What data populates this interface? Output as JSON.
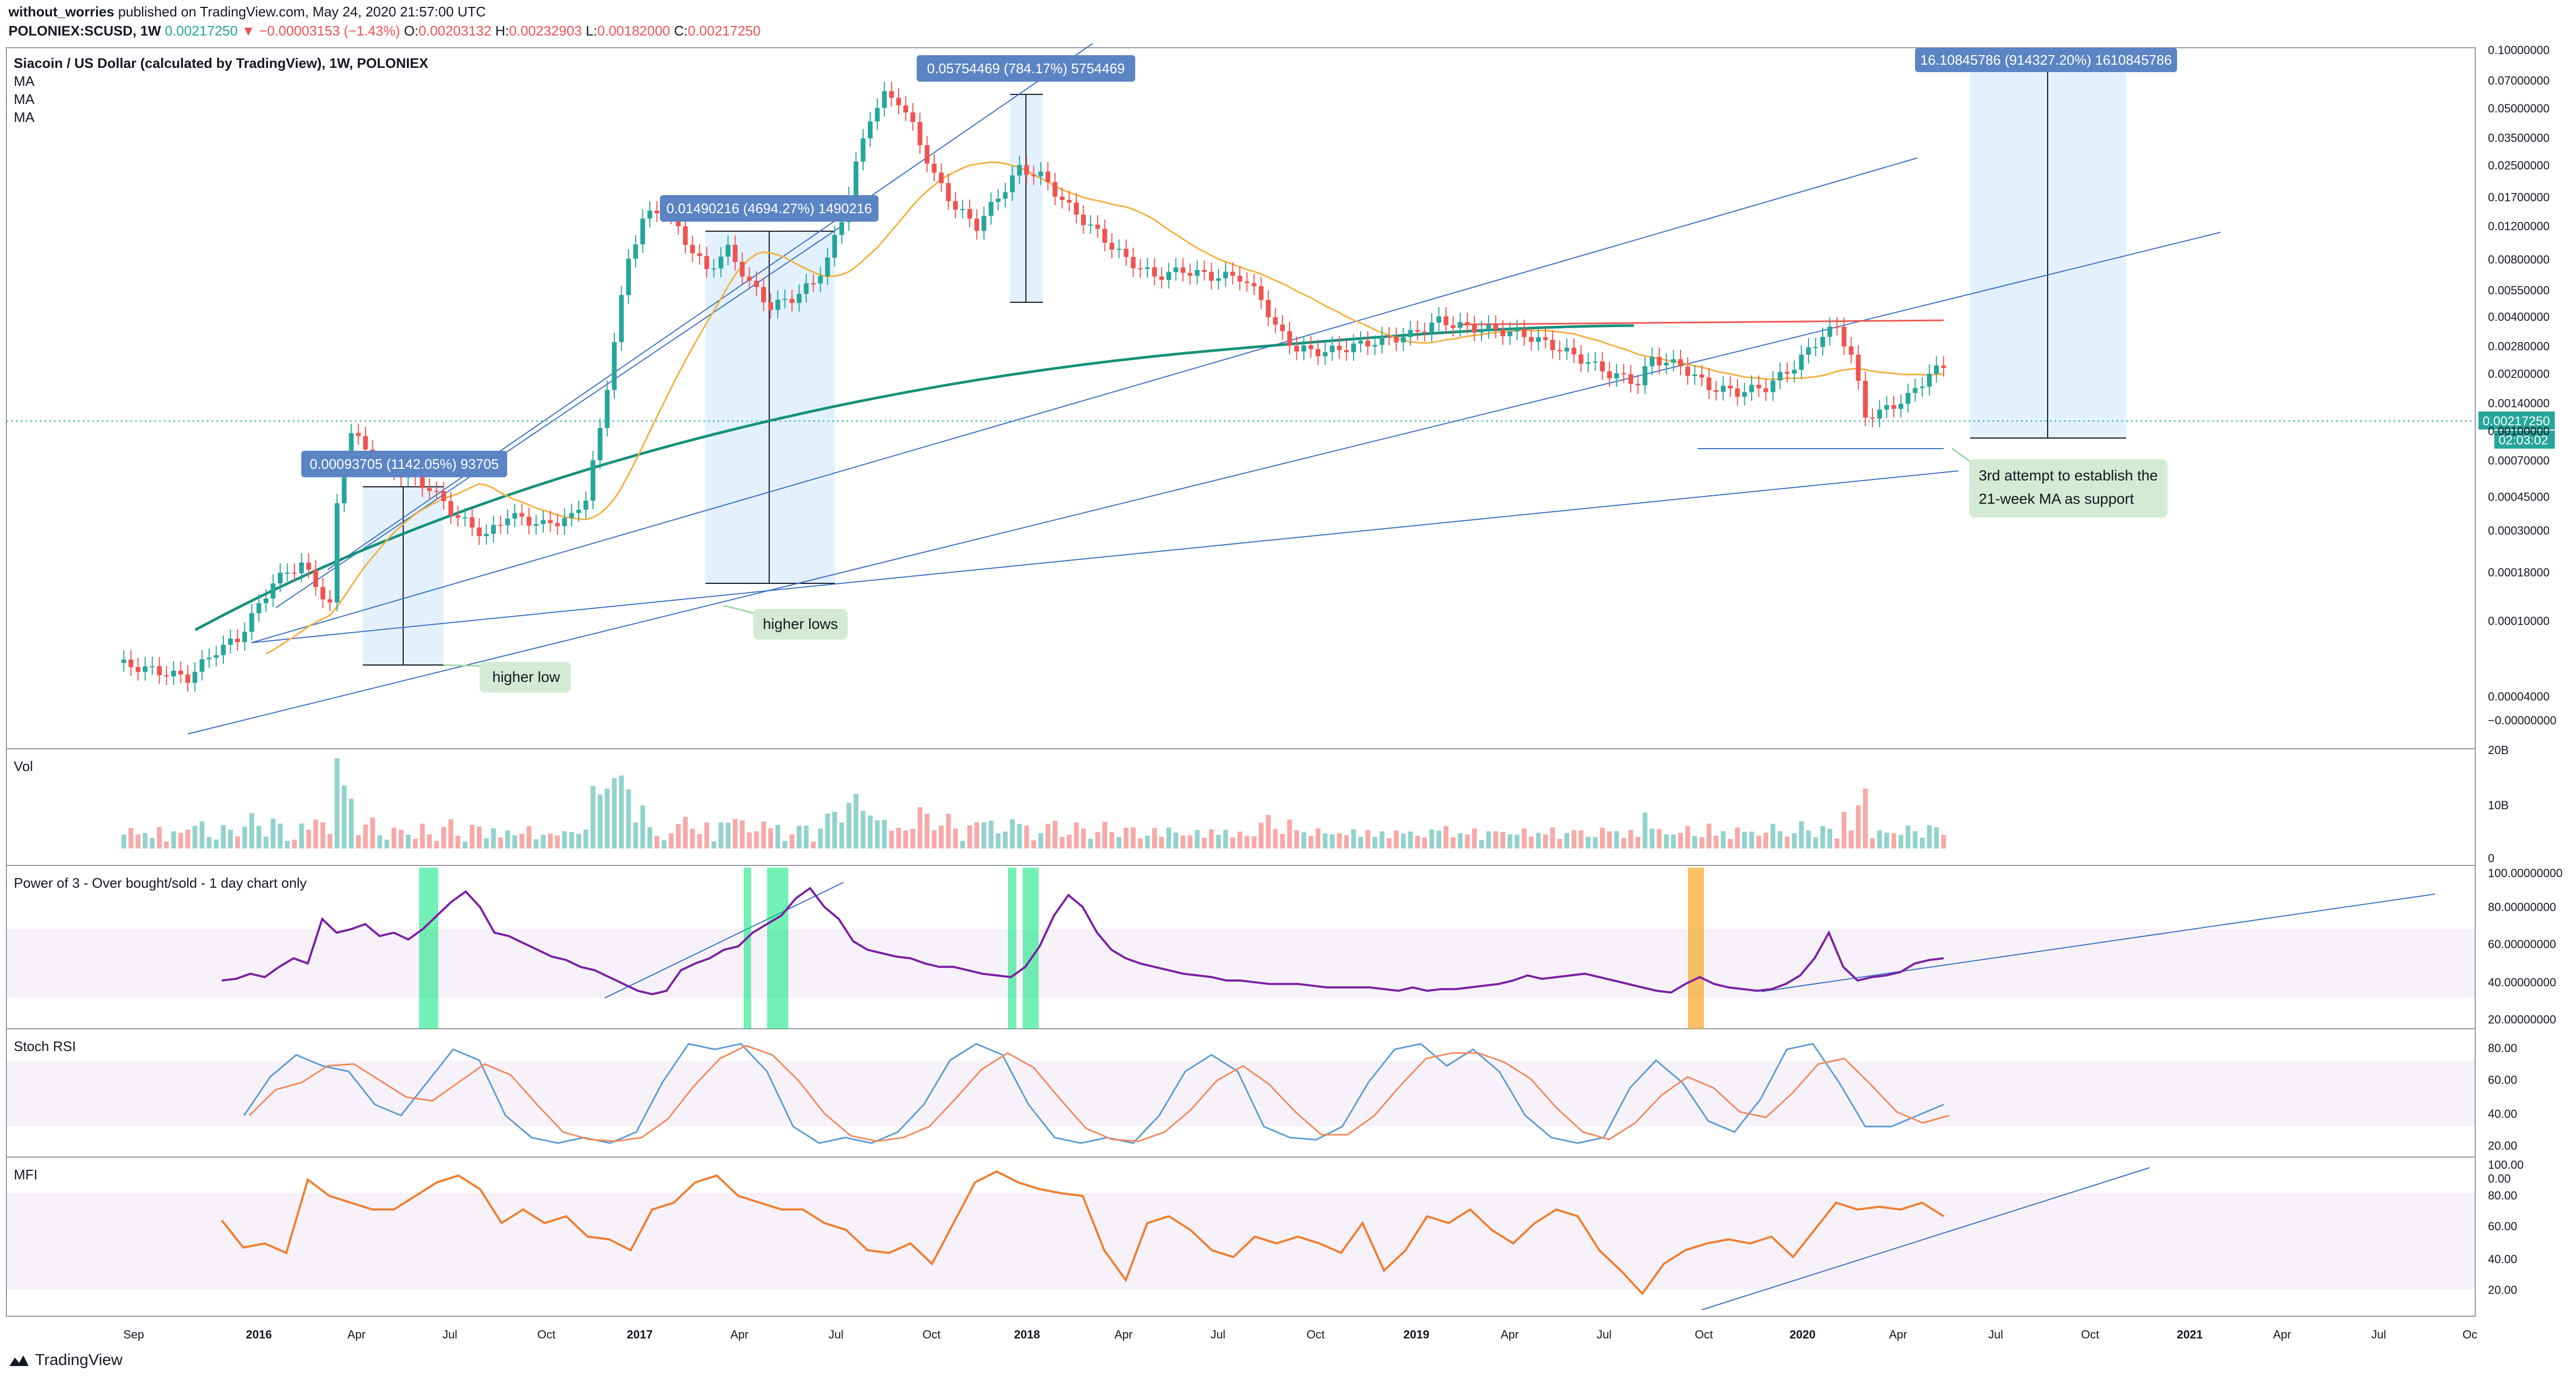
{
  "header": {
    "author": "without_worries",
    "published_text": "published on TradingView.com, May 24, 2020 21:57:00 UTC",
    "symbol": "POLONIEX:SCUSD, 1W",
    "last": "0.00217250",
    "change": "▼ −0.00003153 (−1.43%)",
    "o_label": "O:",
    "o_value": "0.00203132",
    "h_label": "H:",
    "h_value": "0.00232903",
    "l_label": "L:",
    "l_value": "0.00182000",
    "c_label": "C:",
    "c_value": "0.00217250"
  },
  "brand": "TradingView",
  "colors": {
    "up": "#26a69a",
    "down": "#ef5350",
    "ma21": "#f5b041",
    "ma_long": "#15907a",
    "trend": "#3a6fc4",
    "osc": "#7b1fa2",
    "stoch_k": "#5b9bd5",
    "stoch_d": "#f08a5d",
    "mfi": "#f07e2f"
  },
  "chart_data": {
    "type": "candlestick",
    "title": "Siacoin / US Dollar (calculated by TradingView), 1W, POLONIEX",
    "legend": [
      "MA",
      "MA",
      "MA"
    ],
    "scale": "log",
    "x_ticks": [
      "Sep",
      "2016",
      "Apr",
      "Jul",
      "Oct",
      "2017",
      "Apr",
      "Jul",
      "Oct",
      "2018",
      "Apr",
      "Jul",
      "Oct",
      "2019",
      "Apr",
      "Jul",
      "Oct",
      "2020",
      "Apr",
      "Jul",
      "Oct",
      "2021",
      "Apr",
      "Jul",
      "Oc"
    ],
    "y_ticks": [
      "0.10000000",
      "0.07000000",
      "0.05000000",
      "0.03500000",
      "0.02500000",
      "0.01700000",
      "0.01200000",
      "0.00800000",
      "0.00550000",
      "0.00400000",
      "0.00280000",
      "0.00200000",
      "0.00140000",
      "0.00100000",
      "0.00070000",
      "0.00045000",
      "0.00030000",
      "0.00018000",
      "0.00010000",
      "0.00004000",
      "−0.00000000"
    ],
    "last_price_label": "0.00217250",
    "countdown_label": "02:03:02",
    "price_path": [
      [
        0.0,
        6e-05
      ],
      [
        5,
        5.5e-05
      ],
      [
        10,
        5e-05
      ],
      [
        14,
        7e-05
      ],
      [
        17,
        8e-05
      ],
      [
        20,
        0.00012
      ],
      [
        22,
        0.00016
      ],
      [
        26,
        0.0002
      ],
      [
        30,
        0.00012
      ],
      [
        31,
        0.0004
      ],
      [
        32,
        0.00072
      ],
      [
        33,
        0.001
      ],
      [
        36,
        0.0007
      ],
      [
        40,
        0.0006
      ],
      [
        44,
        0.0005
      ],
      [
        48,
        0.00035
      ],
      [
        52,
        0.00028
      ],
      [
        55,
        0.00036
      ],
      [
        60,
        0.00032
      ],
      [
        64,
        0.00035
      ],
      [
        66,
        0.00045
      ],
      [
        68,
        0.001
      ],
      [
        70,
        0.003
      ],
      [
        72,
        0.008
      ],
      [
        74,
        0.013
      ],
      [
        77,
        0.015
      ],
      [
        80,
        0.01
      ],
      [
        83,
        0.007
      ],
      [
        86,
        0.009
      ],
      [
        89,
        0.006
      ],
      [
        92,
        0.0045
      ],
      [
        95,
        0.005
      ],
      [
        98,
        0.006
      ],
      [
        100,
        0.008
      ],
      [
        102,
        0.013
      ],
      [
        104,
        0.025
      ],
      [
        106,
        0.045
      ],
      [
        108,
        0.058
      ],
      [
        110,
        0.055
      ],
      [
        112,
        0.04
      ],
      [
        115,
        0.022
      ],
      [
        118,
        0.015
      ],
      [
        121,
        0.012
      ],
      [
        124,
        0.017
      ],
      [
        127,
        0.024
      ],
      [
        130,
        0.022
      ],
      [
        134,
        0.015
      ],
      [
        138,
        0.011
      ],
      [
        142,
        0.008
      ],
      [
        146,
        0.0065
      ],
      [
        150,
        0.007
      ],
      [
        154,
        0.0065
      ],
      [
        158,
        0.0065
      ],
      [
        161,
        0.005
      ],
      [
        163,
        0.0035
      ],
      [
        166,
        0.0027
      ],
      [
        170,
        0.0026
      ],
      [
        174,
        0.0028
      ],
      [
        178,
        0.003
      ],
      [
        182,
        0.0032
      ],
      [
        186,
        0.0038
      ],
      [
        190,
        0.0035
      ],
      [
        194,
        0.0034
      ],
      [
        198,
        0.0032
      ],
      [
        202,
        0.0028
      ],
      [
        206,
        0.0024
      ],
      [
        210,
        0.002
      ],
      [
        214,
        0.0018
      ],
      [
        216,
        0.0024
      ],
      [
        220,
        0.0022
      ],
      [
        224,
        0.0017
      ],
      [
        228,
        0.0016
      ],
      [
        232,
        0.0017
      ],
      [
        236,
        0.0022
      ],
      [
        240,
        0.0032
      ],
      [
        242,
        0.0035
      ],
      [
        244,
        0.0025
      ],
      [
        246,
        0.0012
      ],
      [
        248,
        0.00125
      ],
      [
        252,
        0.0015
      ],
      [
        255,
        0.002
      ],
      [
        257,
        0.00217
      ]
    ],
    "measure_annotations": [
      "0.00093705 (1142.05%) 93705",
      "0.01490216 (4694.27%) 1490216",
      "0.05754469 (784.17%) 5754469",
      "16.10845786 (914327.20%) 1610845786"
    ],
    "callouts": [
      "higher low",
      "higher lows",
      "3rd attempt to establish the",
      "21-week MA as support"
    ],
    "panes": [
      {
        "name": "Vol",
        "y_ticks": [
          "20B",
          "10B",
          "0"
        ]
      },
      {
        "name": "Power of 3 - Over bought/sold - 1 day chart only",
        "y_ticks": [
          "100.00000000",
          "80.00000000",
          "60.00000000",
          "40.00000000",
          "20.00000000"
        ]
      },
      {
        "name": "Stoch RSI",
        "y_ticks": [
          "80.00",
          "60.00",
          "40.00",
          "20.00",
          "0.00"
        ]
      },
      {
        "name": "MFI",
        "y_ticks": [
          "100.00",
          "80.00",
          "60.00",
          "40.00",
          "20.00"
        ]
      }
    ],
    "osc_series": [
      42,
      43,
      46,
      44,
      50,
      55,
      52,
      78,
      70,
      72,
      75,
      68,
      70,
      66,
      72,
      80,
      88,
      94,
      85,
      70,
      68,
      64,
      60,
      56,
      54,
      50,
      48,
      44,
      40,
      36,
      34,
      36,
      48,
      52,
      55,
      60,
      62,
      70,
      75,
      80,
      90,
      96,
      85,
      78,
      65,
      60,
      58,
      56,
      55,
      52,
      50,
      50,
      48,
      46,
      45,
      44,
      50,
      62,
      80,
      92,
      85,
      70,
      60,
      55,
      52,
      50,
      48,
      46,
      45,
      44,
      42,
      42,
      41,
      40,
      40,
      40,
      39,
      38,
      38,
      38,
      38,
      37,
      36,
      38,
      36,
      37,
      37,
      38,
      39,
      40,
      42,
      45,
      43,
      44,
      45,
      46,
      44,
      42,
      40,
      38,
      36,
      35,
      40,
      44,
      40,
      38,
      37,
      36,
      37,
      40,
      45,
      55,
      70,
      50,
      42,
      44,
      45,
      47,
      52,
      54,
      55
    ],
    "stoch_k": [
      30,
      65,
      85,
      75,
      70,
      40,
      30,
      60,
      90,
      80,
      30,
      10,
      5,
      10,
      5,
      15,
      60,
      95,
      90,
      95,
      70,
      20,
      5,
      10,
      5,
      15,
      40,
      80,
      95,
      85,
      40,
      10,
      5,
      10,
      5,
      30,
      70,
      85,
      70,
      20,
      10,
      8,
      20,
      60,
      90,
      95,
      75,
      90,
      70,
      30,
      10,
      5,
      10,
      55,
      80,
      60,
      25,
      15,
      45,
      90,
      95,
      60,
      20,
      20,
      30,
      40
    ],
    "mfi_series": [
      62,
      42,
      45,
      38,
      92,
      80,
      75,
      70,
      70,
      80,
      90,
      95,
      85,
      60,
      70,
      60,
      65,
      50,
      48,
      40,
      70,
      75,
      90,
      95,
      80,
      75,
      70,
      70,
      60,
      55,
      40,
      38,
      45,
      30,
      60,
      90,
      98,
      90,
      85,
      82,
      80,
      40,
      18,
      60,
      65,
      55,
      40,
      35,
      50,
      45,
      50,
      45,
      38,
      60,
      25,
      40,
      65,
      60,
      70,
      55,
      45,
      60,
      70,
      65,
      40,
      25,
      8,
      30,
      40,
      45,
      48,
      45,
      50,
      35,
      55,
      75,
      70,
      72,
      70,
      75,
      65
    ]
  }
}
